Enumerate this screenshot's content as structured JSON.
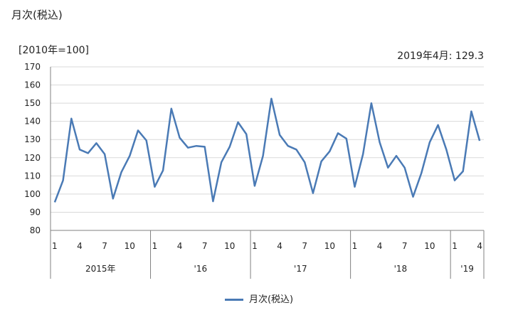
{
  "chart_data": {
    "type": "line",
    "title": "月次(税込)",
    "ylabel": "[2010年=100]",
    "annotation": "2019年4月: 129.3",
    "ylim": [
      80,
      170
    ],
    "yticks": [
      80,
      90,
      100,
      110,
      120,
      130,
      140,
      150,
      160,
      170
    ],
    "grid": true,
    "legend_position": "bottom",
    "month_tick_labels": [
      "1",
      "4",
      "7",
      "10",
      "1",
      "4",
      "7",
      "10",
      "1",
      "4",
      "7",
      "10",
      "1",
      "4",
      "7",
      "10",
      "1",
      "4"
    ],
    "month_tick_index": [
      0,
      3,
      6,
      9,
      12,
      15,
      18,
      21,
      24,
      27,
      30,
      33,
      36,
      39,
      42,
      45,
      48,
      51
    ],
    "year_groups": [
      {
        "label": "2015年",
        "start": 0,
        "end": 11
      },
      {
        "label": "'16",
        "start": 12,
        "end": 23
      },
      {
        "label": "'17",
        "start": 24,
        "end": 35
      },
      {
        "label": "'18",
        "start": 36,
        "end": 47
      },
      {
        "label": "'19",
        "start": 48,
        "end": 51
      }
    ],
    "series": [
      {
        "name": "月次(税込)",
        "color": "#4a7ab5",
        "values": [
          95.5,
          107.5,
          141.5,
          124.5,
          122.5,
          128,
          122,
          97.5,
          112,
          121,
          135,
          129.5,
          104,
          113,
          147,
          131,
          125.5,
          126.5,
          126,
          96,
          117.5,
          126,
          139.5,
          133,
          104.5,
          121,
          152.5,
          132.5,
          126.5,
          124.5,
          117.5,
          100.5,
          118,
          123.5,
          133.5,
          130.5,
          104,
          122,
          150,
          128.5,
          114.5,
          121,
          114.5,
          98.5,
          111.5,
          128.5,
          138,
          124.5,
          107.5,
          112.5,
          145.5,
          129.3
        ]
      }
    ]
  }
}
